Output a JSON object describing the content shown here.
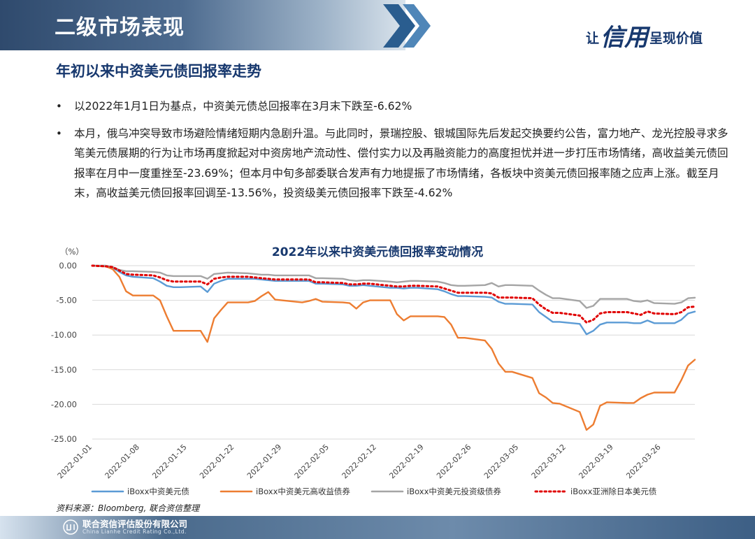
{
  "header": {
    "title": "二级市场表现",
    "slogan_prefix": "让",
    "slogan_big": "信用",
    "slogan_suffix": "呈现价值"
  },
  "section_title": "年初以来中资美元债回报率走势",
  "bullets": [
    "以2022年1月1日为基点，中资美元债总回报率在3月末下跌至-6.62%",
    "本月，俄乌冲突导致市场避险情绪短期内急剧升温。与此同时，景瑞控股、银城国际先后发起交换要约公告，富力地产、龙光控股寻求多笔美元债展期的行为让市场再度掀起对中资房地产流动性、偿付实力以及再融资能力的高度担忧并进一步打压市场情绪，高收益美元债回报率在月中一度重挫至-23.69%；但本月中旬多部委联合发声有力地提振了市场情绪，各板块中资美元债回报率随之应声上涨。截至月末，高收益美元债回报率回调至-13.56%，投资级美元债回报率下跌至-4.62%"
  ],
  "source": "资料来源：Bloomberg, 联合资信整理",
  "footer": {
    "company": "联合资信评估股份有限公司",
    "company_en": "China Lianhe Credit Rating Co.,Ltd."
  },
  "chart_data": {
    "type": "line",
    "title": "2022年以来中资美元债回报率变动情况",
    "ylabel": "（%）",
    "xlabel": "",
    "ylim": [
      -25,
      0
    ],
    "yticks": [
      "0.00",
      "-5.00",
      "-10.00",
      "-15.00",
      "-20.00",
      "-25.00"
    ],
    "ytick_values": [
      0,
      -5,
      -10,
      -15,
      -20,
      -25
    ],
    "grid": "horizontal",
    "legend_position": "bottom",
    "x": [
      "2022-01-01",
      "2022-01-03",
      "2022-01-04",
      "2022-01-05",
      "2022-01-06",
      "2022-01-07",
      "2022-01-10",
      "2022-01-11",
      "2022-01-12",
      "2022-01-13",
      "2022-01-14",
      "2022-01-17",
      "2022-01-18",
      "2022-01-19",
      "2022-01-20",
      "2022-01-21",
      "2022-01-24",
      "2022-01-25",
      "2022-01-26",
      "2022-01-27",
      "2022-01-28",
      "2022-01-31",
      "2022-02-01",
      "2022-02-02",
      "2022-02-03",
      "2022-02-04",
      "2022-02-07",
      "2022-02-08",
      "2022-02-09",
      "2022-02-10",
      "2022-02-11",
      "2022-02-14",
      "2022-02-15",
      "2022-02-16",
      "2022-02-17",
      "2022-02-18",
      "2022-02-21",
      "2022-02-22",
      "2022-02-23",
      "2022-02-24",
      "2022-02-25",
      "2022-02-28",
      "2022-03-01",
      "2022-03-02",
      "2022-03-03",
      "2022-03-04",
      "2022-03-07",
      "2022-03-08",
      "2022-03-09",
      "2022-03-10",
      "2022-03-11",
      "2022-03-14",
      "2022-03-15",
      "2022-03-16",
      "2022-03-17",
      "2022-03-18",
      "2022-03-21",
      "2022-03-22",
      "2022-03-23",
      "2022-03-24",
      "2022-03-25",
      "2022-03-28",
      "2022-03-29",
      "2022-03-30",
      "2022-03-31"
    ],
    "xtick_labels": [
      "2022-01-01",
      "2022-01-08",
      "2022-01-15",
      "2022-01-22",
      "2022-01-29",
      "2022-02-05",
      "2022-02-12",
      "2022-02-19",
      "2022-02-26",
      "2022-03-05",
      "2022-03-12",
      "2022-03-19",
      "2022-03-26"
    ],
    "series": [
      {
        "name": "iBoxx中资美元债",
        "color": "#5b9bd5",
        "style": "solid",
        "values": [
          0,
          -0.1,
          -0.3,
          -0.9,
          -1.4,
          -1.6,
          -1.8,
          -2.3,
          -2.9,
          -3.1,
          -3.1,
          -3.0,
          -3.8,
          -2.6,
          -2.2,
          -1.9,
          -1.9,
          -1.9,
          -2.0,
          -2.1,
          -2.2,
          -2.2,
          -2.2,
          -2.2,
          -2.6,
          -2.6,
          -2.7,
          -2.9,
          -2.9,
          -2.8,
          -2.9,
          -3.2,
          -3.2,
          -3.3,
          -3.2,
          -3.2,
          -3.4,
          -3.7,
          -4.1,
          -4.4,
          -4.4,
          -4.5,
          -4.6,
          -5.2,
          -5.5,
          -5.5,
          -5.6,
          -6.7,
          -7.4,
          -8.1,
          -8.1,
          -8.4,
          -9.9,
          -9.4,
          -8.5,
          -8.2,
          -8.2,
          -8.3,
          -8.3,
          -7.9,
          -8.3,
          -8.3,
          -7.8,
          -6.9,
          -6.62
        ]
      },
      {
        "name": "iBoxx中资美元高收益债券",
        "color": "#ed7d31",
        "style": "solid",
        "values": [
          0,
          -0.1,
          -0.5,
          -1.6,
          -3.7,
          -4.3,
          -4.3,
          -5.0,
          -7.3,
          -9.4,
          -9.4,
          -9.4,
          -11.0,
          -7.6,
          -6.4,
          -5.3,
          -5.3,
          -5.1,
          -4.4,
          -3.8,
          -4.9,
          -5.2,
          -5.3,
          -5.1,
          -4.8,
          -5.2,
          -5.3,
          -5.4,
          -6.2,
          -5.3,
          -5.0,
          -5.0,
          -7.0,
          -7.9,
          -7.3,
          -7.3,
          -7.3,
          -7.4,
          -8.5,
          -10.4,
          -10.4,
          -10.8,
          -12.0,
          -14.1,
          -15.3,
          -15.3,
          -16.2,
          -18.4,
          -19.0,
          -19.8,
          -19.9,
          -21.1,
          -23.69,
          -22.9,
          -20.2,
          -19.7,
          -19.8,
          -19.8,
          -19.1,
          -18.6,
          -18.3,
          -18.3,
          -16.5,
          -14.4,
          -13.56
        ]
      },
      {
        "name": "iBoxx中资美元投资级债券",
        "color": "#a5a5a5",
        "style": "solid",
        "values": [
          0,
          0,
          -0.2,
          -0.6,
          -0.8,
          -0.8,
          -0.9,
          -1.0,
          -1.4,
          -1.5,
          -1.5,
          -1.5,
          -1.9,
          -1.2,
          -1.1,
          -1.0,
          -1.1,
          -1.2,
          -1.3,
          -1.3,
          -1.4,
          -1.4,
          -1.4,
          -1.4,
          -1.8,
          -1.8,
          -1.9,
          -2.1,
          -2.2,
          -2.1,
          -2.1,
          -2.3,
          -2.4,
          -2.3,
          -2.2,
          -2.2,
          -2.3,
          -2.5,
          -2.8,
          -2.9,
          -2.9,
          -2.8,
          -2.5,
          -3.0,
          -2.8,
          -2.8,
          -2.9,
          -3.6,
          -4.2,
          -4.7,
          -4.7,
          -5.1,
          -6.1,
          -5.8,
          -4.8,
          -4.8,
          -4.8,
          -5.1,
          -5.2,
          -5.0,
          -5.4,
          -5.5,
          -5.3,
          -4.7,
          -4.62
        ]
      },
      {
        "name": "iBoxx亚洲除日本美元债",
        "color": "#e00000",
        "style": "dotted",
        "values": [
          0,
          -0.1,
          -0.2,
          -0.7,
          -1.2,
          -1.3,
          -1.4,
          -1.7,
          -2.1,
          -2.3,
          -2.3,
          -2.3,
          -2.7,
          -1.9,
          -1.7,
          -1.6,
          -1.6,
          -1.7,
          -1.8,
          -1.9,
          -2.0,
          -2.0,
          -2.0,
          -2.0,
          -2.4,
          -2.4,
          -2.5,
          -2.7,
          -2.7,
          -2.6,
          -2.6,
          -2.9,
          -3.0,
          -3.0,
          -2.9,
          -2.9,
          -3.0,
          -3.3,
          -3.6,
          -3.9,
          -3.9,
          -3.9,
          -4.0,
          -4.6,
          -4.6,
          -4.6,
          -4.7,
          -5.6,
          -6.3,
          -6.8,
          -6.8,
          -7.2,
          -8.2,
          -7.8,
          -6.9,
          -6.7,
          -6.7,
          -6.9,
          -7.1,
          -6.6,
          -6.9,
          -7.0,
          -6.7,
          -6.0,
          -5.9
        ]
      }
    ]
  }
}
